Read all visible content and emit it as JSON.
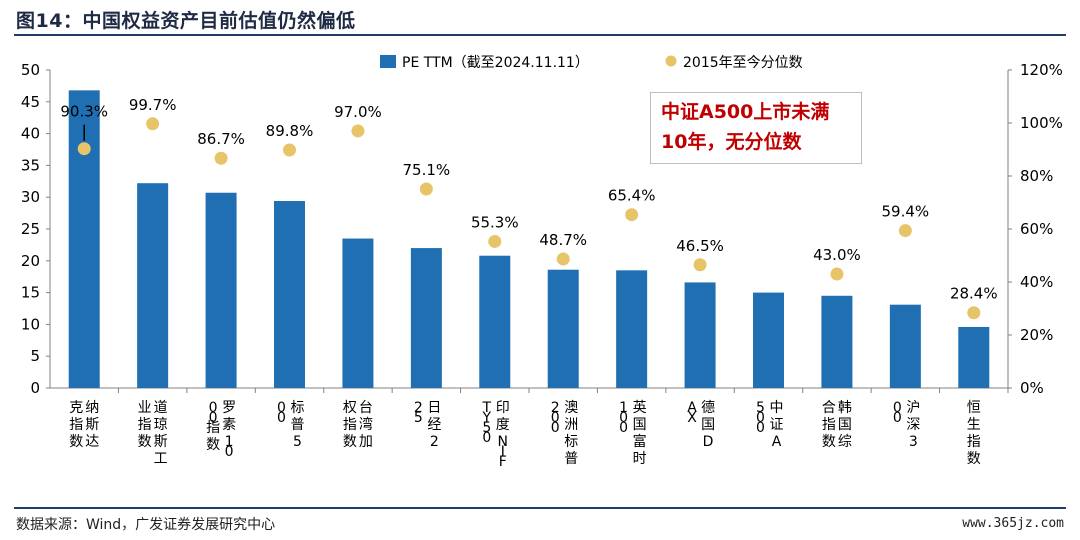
{
  "title": "图14：中国权益资产目前估值仍然偏低",
  "source": "数据来源：Wind，广发证券发展研究中心",
  "watermark": "www.365jz.com",
  "annotation": {
    "line1": "中证A500上市未满",
    "line2": "10年，无分位数"
  },
  "colors": {
    "bar": "#1f6fb2",
    "dot": "#e8c468",
    "annotation": "#c00000"
  },
  "chart_data": {
    "type": "bar",
    "legend": {
      "placement": "top-center",
      "bar_label": "PE TTM（截至2024.11.11）",
      "dot_label": "2015年至今分位数"
    },
    "categories": [
      "纳斯达克指数",
      "道琼斯工业指数",
      "罗素1000指数",
      "标普500",
      "台湾加权指数",
      "日经225",
      "印度NIFTY 50",
      "澳洲标普200",
      "英国富时100",
      "德国DAX",
      "中证A500",
      "韩国综合指数",
      "沪深300",
      "恒生指数"
    ],
    "series": [
      {
        "name": "PE TTM（截至2024.11.11）",
        "axis": "left",
        "values": [
          46.8,
          32.2,
          30.7,
          29.4,
          23.5,
          22.0,
          20.8,
          18.6,
          18.5,
          16.6,
          15.0,
          14.5,
          13.1,
          9.6
        ]
      },
      {
        "name": "2015年至今分位数",
        "axis": "right",
        "values": [
          90.3,
          99.7,
          86.7,
          89.8,
          97.0,
          75.1,
          55.3,
          48.7,
          65.4,
          46.5,
          null,
          43.0,
          59.4,
          28.4
        ],
        "labels": [
          "90.3%",
          "99.7%",
          "86.7%",
          "89.8%",
          "97.0%",
          "75.1%",
          "55.3%",
          "48.7%",
          "65.4%",
          "46.5%",
          "",
          "43.0%",
          "59.4%",
          "28.4%"
        ]
      }
    ],
    "y_left": {
      "min": 0,
      "max": 50,
      "ticks": [
        "0",
        "5",
        "10",
        "15",
        "20",
        "25",
        "30",
        "35",
        "40",
        "45",
        "50"
      ]
    },
    "y_right": {
      "min": 0,
      "max": 120,
      "ticks": [
        "0%",
        "20%",
        "40%",
        "60%",
        "80%",
        "100%",
        "120%"
      ]
    },
    "grid": false
  }
}
